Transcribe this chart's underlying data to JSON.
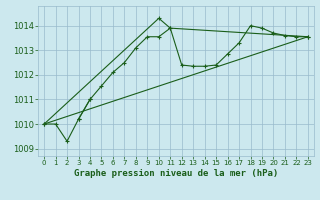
{
  "title": "Graphe pression niveau de la mer (hPa)",
  "background_color": "#cce8ee",
  "grid_color": "#99bbcc",
  "line_color": "#1a5e1a",
  "xlim": [
    -0.5,
    23.5
  ],
  "ylim": [
    1008.7,
    1014.8
  ],
  "xticks": [
    0,
    1,
    2,
    3,
    4,
    5,
    6,
    7,
    8,
    9,
    10,
    11,
    12,
    13,
    14,
    15,
    16,
    17,
    18,
    19,
    20,
    21,
    22,
    23
  ],
  "yticks": [
    1009,
    1010,
    1011,
    1012,
    1013,
    1014
  ],
  "series1_x": [
    0,
    1,
    2,
    3,
    4
  ],
  "series1_y": [
    1010.0,
    1010.0,
    1009.3,
    1010.2,
    1011.0
  ],
  "series2_x": [
    3,
    4,
    5,
    6,
    7,
    8,
    9,
    10,
    11,
    12,
    13,
    14,
    15,
    16,
    17,
    18,
    19,
    20,
    21,
    22,
    23
  ],
  "series2_y": [
    1010.2,
    1011.0,
    1011.55,
    1012.1,
    1012.5,
    1013.1,
    1013.55,
    1013.55,
    1013.9,
    1012.4,
    1012.35,
    1012.35,
    1012.4,
    1012.85,
    1013.3,
    1014.0,
    1013.9,
    1013.7,
    1013.6,
    1013.55,
    1013.55
  ],
  "series3_x": [
    0,
    10,
    11,
    23
  ],
  "series3_y": [
    1010.0,
    1014.3,
    1013.9,
    1013.55
  ],
  "series4_x": [
    0,
    23
  ],
  "series4_y": [
    1010.0,
    1013.55
  ]
}
